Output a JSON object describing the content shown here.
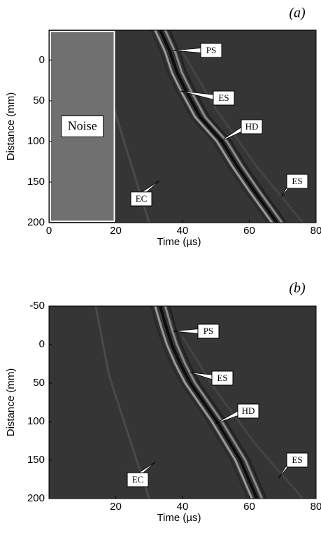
{
  "chart_data": [
    {
      "type": "image",
      "panel_label": "(a)",
      "xlabel": "Time (µs)",
      "ylabel": "Distance (mm)",
      "xlim": [
        0,
        80
      ],
      "ylim": [
        -37,
        200
      ],
      "xticks": [
        0,
        20,
        40,
        60,
        80
      ],
      "yticks": [
        0,
        50,
        100,
        150,
        200
      ],
      "annotations": [
        "PS",
        "ES",
        "HD",
        "ES",
        "EC"
      ],
      "noise_region": {
        "label": "Noise",
        "xlim": [
          0,
          20
        ]
      }
    },
    {
      "type": "image",
      "panel_label": "(b)",
      "xlabel": "Time (µs)",
      "ylabel": "Distance (mm)",
      "xlim": [
        0,
        80
      ],
      "ylim": [
        -50,
        200
      ],
      "xticks": [
        20,
        40,
        60,
        80
      ],
      "yticks": [
        -50,
        0,
        50,
        100,
        150,
        200
      ],
      "annotations": [
        "PS",
        "ES",
        "HD",
        "ES",
        "EC"
      ]
    }
  ]
}
